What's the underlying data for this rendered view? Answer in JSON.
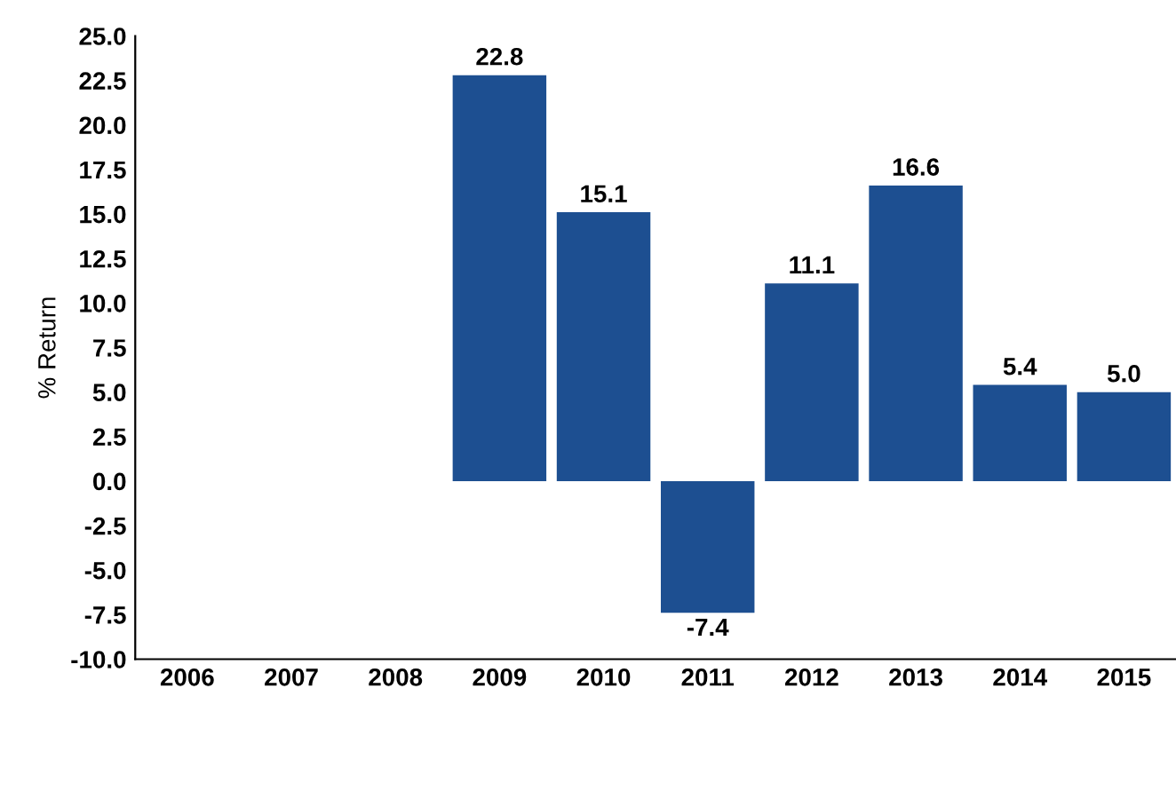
{
  "chart_data": {
    "type": "bar",
    "ylabel": "% Return",
    "categories": [
      "2006",
      "2007",
      "2008",
      "2009",
      "2010",
      "2011",
      "2012",
      "2013",
      "2014",
      "2015"
    ],
    "series": [
      {
        "color": "#1d4f91",
        "values": [
          null,
          null,
          null,
          22.8,
          15.1,
          -7.4,
          11.1,
          16.6,
          5.4,
          5
        ],
        "value_labels": [
          null,
          null,
          null,
          "22.8",
          "15.1",
          "-7.4",
          "11.1",
          "16.6",
          "5.4",
          "5.0"
        ]
      }
    ],
    "ylim": [
      -10,
      25
    ],
    "yticks": [
      {
        "value": -10,
        "label": "-10.0"
      },
      -7.5,
      {
        "value": -5,
        "label": "-5.0"
      },
      -2.5,
      {
        "value": 0,
        "label": "0.0"
      },
      2.5,
      {
        "value": 5,
        "label": "5.0"
      },
      7.5,
      {
        "value": 10,
        "label": "10.0"
      },
      12.5,
      {
        "value": 15,
        "label": "15.0"
      },
      17.5,
      {
        "value": 20,
        "label": "20.0"
      },
      22.5,
      {
        "value": 25,
        "label": "25.0"
      }
    ],
    "grid": false,
    "legend": false
  }
}
